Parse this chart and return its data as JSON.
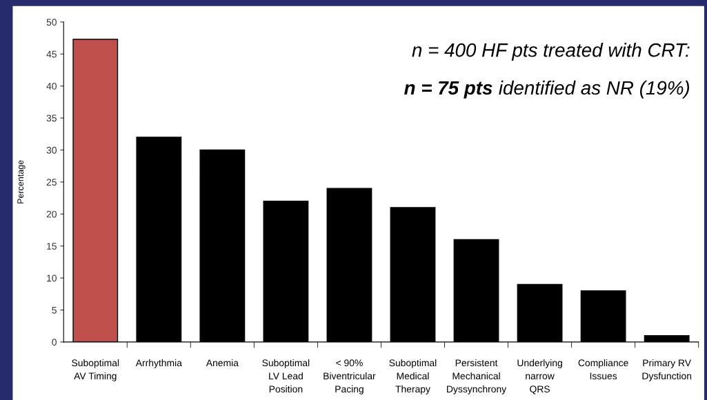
{
  "chart_data": {
    "type": "bar",
    "categories": [
      "Suboptimal\nAV Timing",
      "Arrhythmia",
      "Anemia",
      "Suboptimal\nLV Lead\nPosition",
      "< 90%\nBiventricular\nPacing",
      "Suboptimal\nMedical\nTherapy",
      "Persistent\nMechanical\nDyssynchrony",
      "Underlying\nnarrow\nQRS",
      "Compliance\nIssues",
      "Primary RV\nDysfunction"
    ],
    "values": [
      47.3,
      32,
      30,
      22,
      24,
      21,
      16,
      9,
      8,
      1
    ],
    "colors": [
      "#c0504d",
      "#000000",
      "#000000",
      "#000000",
      "#000000",
      "#000000",
      "#000000",
      "#000000",
      "#000000",
      "#000000"
    ],
    "ylabel": "Percentage",
    "ylim": [
      0,
      50
    ],
    "yticks": [
      0,
      5,
      10,
      15,
      20,
      25,
      30,
      35,
      40,
      45,
      50
    ],
    "grid": false,
    "annotations": [
      "n = 400 HF pts treated with CRT:",
      "n = 75 pts",
      "identified as NR (19%)"
    ]
  }
}
